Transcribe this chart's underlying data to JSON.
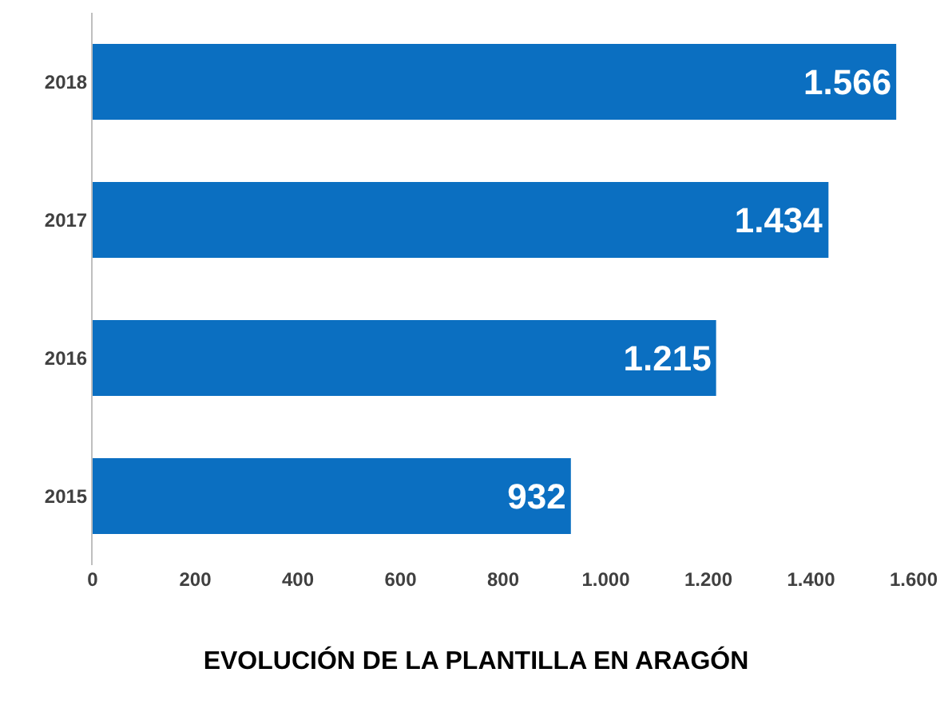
{
  "chart_data": {
    "type": "bar",
    "orientation": "horizontal",
    "title": "EVOLUCIÓN DE LA PLANTILLA EN ARAGÓN",
    "categories": [
      "2018",
      "2017",
      "2016",
      "2015"
    ],
    "values": [
      1566,
      1434,
      1215,
      932
    ],
    "value_labels": [
      "1.566",
      "1.434",
      "1.215",
      "932"
    ],
    "color": "#0b6fc1",
    "xlim": [
      0,
      1600
    ],
    "xticks": [
      0,
      200,
      400,
      600,
      800,
      {
        "value": 1000,
        "label": "1.000"
      },
      {
        "value": 1200,
        "label": "1.200"
      },
      {
        "value": 1400,
        "label": "1.400"
      },
      {
        "value": 1600,
        "label": "1.600"
      }
    ],
    "grid": false
  }
}
